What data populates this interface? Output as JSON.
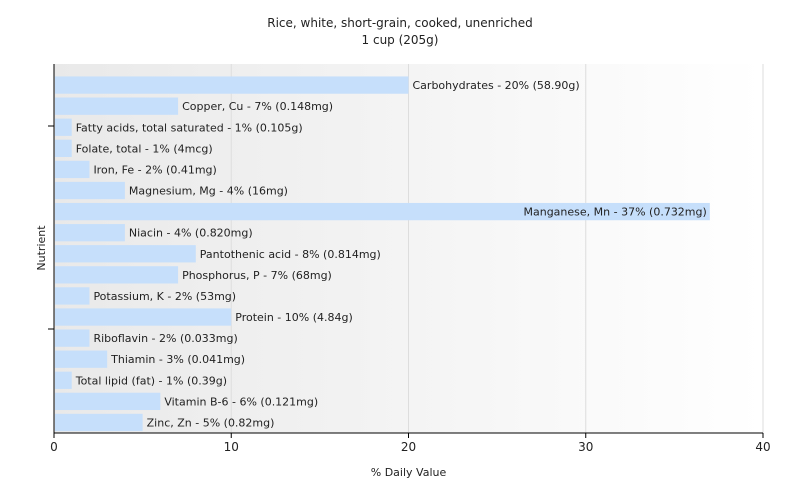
{
  "chart_data": {
    "type": "bar",
    "orientation": "horizontal",
    "title": "Rice, white, short-grain, cooked, unenriched",
    "subtitle": "1 cup (205g)",
    "xlabel": "% Daily Value",
    "ylabel": "Nutrient",
    "xlim": [
      0,
      40
    ],
    "xticks": [
      0,
      10,
      20,
      30,
      40
    ],
    "grid": true,
    "bar_color": "#c6dffb",
    "categories": [
      "Carbohydrates",
      "Copper, Cu",
      "Fatty acids, total saturated",
      "Folate, total",
      "Iron, Fe",
      "Magnesium, Mg",
      "Manganese, Mn",
      "Niacin",
      "Pantothenic acid",
      "Phosphorus, P",
      "Potassium, K",
      "Protein",
      "Riboflavin",
      "Thiamin",
      "Total lipid (fat)",
      "Vitamin B-6",
      "Zinc, Zn"
    ],
    "values": [
      20,
      7,
      1,
      1,
      2,
      4,
      37,
      4,
      8,
      7,
      2,
      10,
      2,
      3,
      1,
      6,
      5
    ],
    "labels": [
      "Carbohydrates - 20% (58.90g)",
      "Copper, Cu - 7% (0.148mg)",
      "Fatty acids, total saturated - 1% (0.105g)",
      "Folate, total - 1% (4mcg)",
      "Iron, Fe - 2% (0.41mg)",
      "Magnesium, Mg - 4% (16mg)",
      "Manganese, Mn - 37% (0.732mg)",
      "Niacin - 4% (0.820mg)",
      "Pantothenic acid - 8% (0.814mg)",
      "Phosphorus, P - 7% (68mg)",
      "Potassium, K - 2% (53mg)",
      "Protein - 10% (4.84g)",
      "Riboflavin - 2% (0.033mg)",
      "Thiamin - 3% (0.041mg)",
      "Total lipid (fat) - 1% (0.39g)",
      "Vitamin B-6 - 6% (0.121mg)",
      "Zinc, Zn - 5% (0.82mg)"
    ]
  }
}
